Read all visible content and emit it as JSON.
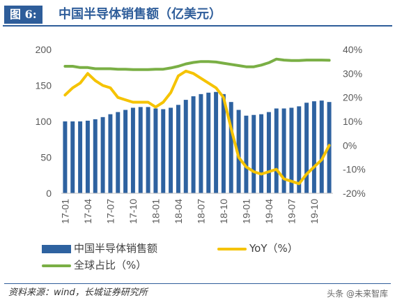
{
  "header": {
    "tag": "图 6:",
    "title": "中国半导体销售额（亿美元）"
  },
  "legend": {
    "bar_label": "中国半导体销售额",
    "yoy_label": "YoY（%）",
    "share_label": "全球占比（%）"
  },
  "footer": {
    "source": "资料来源：wind，长城证券研究所",
    "watermark": "头条 @未来智库"
  },
  "colors": {
    "bars": "#2e62a0",
    "yoy": "#f5c300",
    "share": "#7aaf45"
  },
  "chart_data": {
    "type": "bar",
    "categories": [
      "17-01",
      "17-02",
      "17-03",
      "17-04",
      "17-05",
      "17-06",
      "17-07",
      "17-08",
      "17-09",
      "17-10",
      "17-11",
      "17-12",
      "18-01",
      "18-02",
      "18-03",
      "18-04",
      "18-05",
      "18-06",
      "18-07",
      "18-08",
      "18-09",
      "18-10",
      "18-11",
      "18-12",
      "19-01",
      "19-02",
      "19-03",
      "19-04",
      "19-05",
      "19-06",
      "19-07",
      "19-08",
      "19-09",
      "19-10",
      "19-11",
      "19-12"
    ],
    "x_tick_labels": [
      "17-01",
      "17-04",
      "17-07",
      "17-10",
      "18-01",
      "18-04",
      "18-07",
      "18-10",
      "19-01",
      "19-04",
      "19-07",
      "19-10"
    ],
    "series": [
      {
        "name": "中国半导体销售额",
        "axis": "left",
        "type": "bar",
        "values": [
          100,
          100,
          100,
          101,
          103,
          106,
          110,
          113,
          116,
          119,
          120,
          120,
          118,
          117,
          119,
          123,
          130,
          135,
          138,
          140,
          141,
          138,
          127,
          116,
          108,
          109,
          110,
          113,
          118,
          118,
          119,
          121,
          126,
          128,
          129,
          127
        ]
      },
      {
        "name": "YoY（%）",
        "axis": "right",
        "type": "line",
        "values": [
          21,
          24,
          26,
          30,
          27,
          25,
          24,
          20,
          19,
          18,
          18,
          18,
          16,
          18,
          22,
          29,
          31,
          30,
          28,
          26,
          24,
          20,
          7,
          -5,
          -9,
          -11,
          -12,
          -11,
          -10,
          -14,
          -15,
          -16,
          -12,
          -9,
          -6,
          0
        ]
      },
      {
        "name": "全球占比（%）",
        "axis": "right",
        "type": "line",
        "values": [
          33,
          33,
          32.5,
          32.5,
          32,
          32,
          32,
          31.8,
          31.8,
          31.6,
          31.6,
          31.6,
          31.8,
          31.8,
          32.3,
          33,
          34,
          34.6,
          35,
          35,
          34.8,
          34.3,
          33.8,
          33.3,
          32.8,
          32.8,
          33.5,
          34.5,
          36,
          35.6,
          35.4,
          35.4,
          35.6,
          35.6,
          35.6,
          35.5
        ]
      }
    ],
    "ylim_left": [
      0,
      200
    ],
    "yticks_left": [
      0,
      50,
      100,
      150,
      200
    ],
    "ylim_right": [
      -20,
      40
    ],
    "yticks_right": [
      "-20%",
      "-10%",
      "0%",
      "10%",
      "20%",
      "30%",
      "40%"
    ],
    "grid": false
  }
}
